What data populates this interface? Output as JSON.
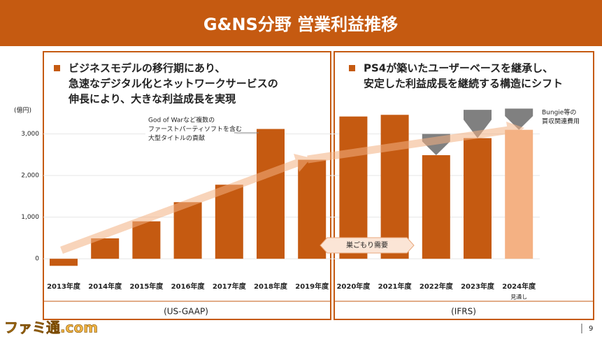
{
  "chart_data": {
    "type": "bar",
    "title": "G&NS分野 営業利益推移",
    "bullets": [
      [
        "ビジネスモデルの移行期にあり、",
        "急速なデジタル化とネットワークサービスの",
        "伸長により、大きな利益成長を実現"
      ],
      [
        "PS4が築いたユーザーベースを継承し、",
        "安定した利益成長を継続する構造にシフト"
      ]
    ],
    "unit_label": "(億円)",
    "categories": [
      "2013年度",
      "2014年度",
      "2015年度",
      "2016年度",
      "2017年度",
      "2018年度",
      "2019年度",
      "2020年度",
      "2021年度",
      "2022年度",
      "2023年度",
      "2024年度"
    ],
    "values": [
      -170,
      490,
      900,
      1360,
      1780,
      3120,
      2380,
      3420,
      3460,
      2490,
      2900,
      3100
    ],
    "colors": [
      "#c55a11",
      "#c55a11",
      "#c55a11",
      "#c55a11",
      "#c55a11",
      "#c55a11",
      "#c55a11",
      "#c55a11",
      "#c55a11",
      "#c55a11",
      "#c55a11",
      "#f4b183"
    ],
    "extra_values": [
      null,
      null,
      null,
      null,
      null,
      null,
      null,
      null,
      null,
      510,
      680,
      510
    ],
    "extra_color": "#808080",
    "ylim": [
      -400,
      3700
    ],
    "yticks": [
      0,
      {
        "value": 1000,
        "label": "1,000"
      },
      {
        "value": 2000,
        "label": "2,000"
      },
      {
        "value": 3000,
        "label": "3,000"
      }
    ],
    "annotations": {
      "god_of_war": [
        "God of Warなど複数の",
        "ファーストパーティソフトを含む",
        "大型タイトルの貢献"
      ],
      "stay_home": "巣ごもり需要",
      "bungie": [
        "Bungie等の",
        "買収関連費用"
      ],
      "forecast": "見通し"
    },
    "section_labels": [
      "(US-GAAP)",
      "(IFRS)"
    ],
    "page_number": "9",
    "watermark": "ファミ通.com"
  }
}
